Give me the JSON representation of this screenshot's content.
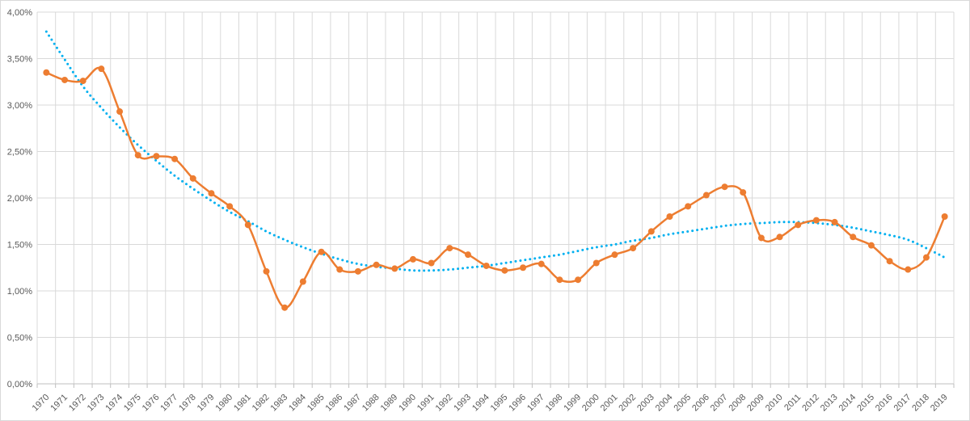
{
  "chart_data": {
    "type": "line",
    "x": [
      "1970",
      "1971",
      "1972",
      "1973",
      "1974",
      "1975",
      "1976",
      "1977",
      "1978",
      "1979",
      "1980",
      "1981",
      "1982",
      "1983",
      "1984",
      "1985",
      "1986",
      "1987",
      "1988",
      "1989",
      "1990",
      "1991",
      "1992",
      "1993",
      "1994",
      "1995",
      "1996",
      "1997",
      "1998",
      "1999",
      "2000",
      "2001",
      "2002",
      "2003",
      "2004",
      "2005",
      "2006",
      "2007",
      "2008",
      "2009",
      "2010",
      "2011",
      "2012",
      "2013",
      "2014",
      "2015",
      "2016",
      "2017",
      "2018",
      "2019"
    ],
    "series": [
      {
        "kind": "data",
        "color": "#ed7d31",
        "values": [
          3.35,
          3.27,
          3.26,
          3.39,
          2.93,
          2.46,
          2.45,
          2.42,
          2.21,
          2.05,
          1.91,
          1.71,
          1.21,
          0.82,
          1.1,
          1.42,
          1.23,
          1.21,
          1.28,
          1.24,
          1.34,
          1.3,
          1.46,
          1.39,
          1.27,
          1.22,
          1.25,
          1.29,
          1.12,
          1.12,
          1.3,
          1.39,
          1.46,
          1.64,
          1.8,
          1.91,
          2.03,
          2.12,
          2.06,
          1.57,
          1.58,
          1.71,
          1.76,
          1.74,
          1.58,
          1.49,
          1.32,
          1.23,
          1.36,
          1.8
        ]
      },
      {
        "kind": "trendline",
        "color": "#00b0f0",
        "values": [
          3.79,
          3.49,
          3.2,
          2.97,
          2.76,
          2.57,
          2.4,
          2.24,
          2.1,
          1.97,
          1.85,
          1.75,
          1.64,
          1.55,
          1.47,
          1.4,
          1.34,
          1.29,
          1.26,
          1.24,
          1.22,
          1.22,
          1.23,
          1.25,
          1.27,
          1.3,
          1.33,
          1.36,
          1.39,
          1.43,
          1.47,
          1.5,
          1.54,
          1.57,
          1.61,
          1.64,
          1.67,
          1.7,
          1.72,
          1.73,
          1.74,
          1.74,
          1.73,
          1.71,
          1.68,
          1.64,
          1.6,
          1.55,
          1.46,
          1.36
        ]
      }
    ],
    "y_ticks": [
      "0,00%",
      "0,50%",
      "1,00%",
      "1,50%",
      "2,00%",
      "2,50%",
      "3,00%",
      "3,50%",
      "4,00%"
    ],
    "ylim": [
      0,
      4
    ],
    "grid": true,
    "legend": "none",
    "title": "",
    "xlabel": "",
    "ylabel": ""
  }
}
